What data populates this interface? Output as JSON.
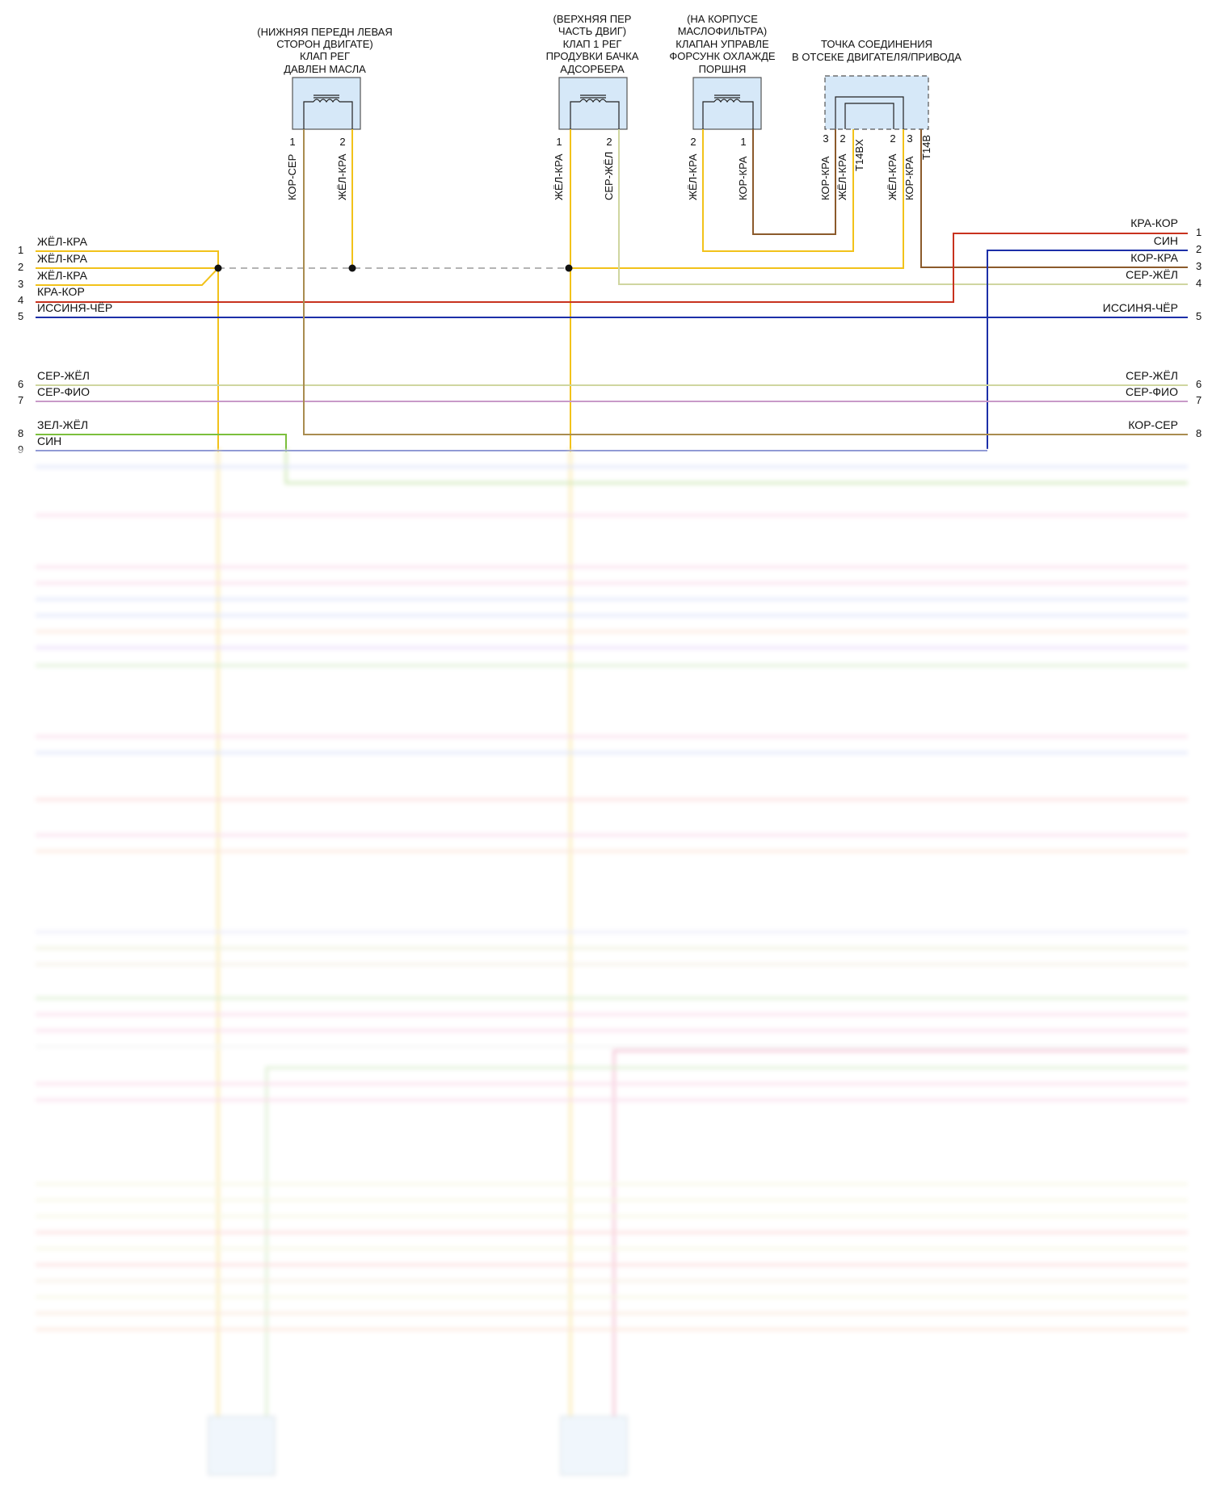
{
  "components": [
    {
      "id": "oil-pressure-valve",
      "caption": [
        "(НИЖНЯЯ ПЕРЕДН ЛЕВАЯ",
        "СТОРОН ДВИГАТЕ)",
        "КЛАП РЕГ",
        "ДАВЛЕН МАСЛА"
      ],
      "pins": [
        {
          "num": "1",
          "wire": "КОР-СЕР"
        },
        {
          "num": "2",
          "wire": "ЖЁЛ-КРА"
        }
      ]
    },
    {
      "id": "purge-valve",
      "caption": [
        "(ВЕРХНЯЯ ПЕР",
        "ЧАСТЬ ДВИГ)",
        "КЛАП 1 РЕГ",
        "ПРОДУВКИ БАЧКА",
        "АДСОРБЕРА"
      ],
      "pins": [
        {
          "num": "1",
          "wire": "ЖЁЛ-КРА"
        },
        {
          "num": "2",
          "wire": "СЕР-ЖЁЛ"
        }
      ]
    },
    {
      "id": "piston-cooling-valve",
      "caption": [
        "(НА КОРПУСЕ",
        "МАСЛОФИЛЬТРА)",
        "КЛАПАН УПРАВЛЕ",
        "ФОРСУНК ОХЛАЖДЕ",
        "ПОРШНЯ"
      ],
      "pins": [
        {
          "num": "2",
          "wire": "ЖЁЛ-КРА"
        },
        {
          "num": "1",
          "wire": "КОР-КРА"
        }
      ]
    },
    {
      "id": "junction-point",
      "caption": [
        "ТОЧКА СОЕДИНЕНИЯ",
        "В ОТСЕКЕ ДВИГАТЕЛЯ/ПРИВОДА"
      ],
      "pins": [
        {
          "num": "3",
          "wire": "КОР-КРА"
        },
        {
          "num": "2",
          "wire": "ЖЁЛ-КРА"
        },
        {
          "num": "",
          "wire": "T14BX"
        },
        {
          "num": "2",
          "wire": "ЖЁЛ-КРА"
        },
        {
          "num": "3",
          "wire": "КОР-КРА"
        },
        {
          "num": "",
          "wire": "T14B"
        }
      ]
    }
  ],
  "left_rows": [
    {
      "num": "1",
      "label": "ЖЁЛ-КРА"
    },
    {
      "num": "2",
      "label": "ЖЁЛ-КРА"
    },
    {
      "num": "3",
      "label": "ЖЁЛ-КРА"
    },
    {
      "num": "4",
      "label": "КРА-КОР"
    },
    {
      "num": "5",
      "label": "ИССИНЯ-ЧЁР"
    },
    {
      "num": "6",
      "label": "СЕР-ЖЁЛ"
    },
    {
      "num": "7",
      "label": "СЕР-ФИО"
    },
    {
      "num": "8",
      "label": "ЗЕЛ-ЖЁЛ"
    },
    {
      "num": "9",
      "label": "СИН"
    }
  ],
  "right_rows": [
    {
      "num": "1",
      "label": "КРА-КОР"
    },
    {
      "num": "2",
      "label": "СИН"
    },
    {
      "num": "3",
      "label": "КОР-КРА"
    },
    {
      "num": "4",
      "label": "СЕР-ЖЁЛ"
    },
    {
      "num": "5",
      "label": "ИССИНЯ-ЧЁР"
    },
    {
      "num": "6",
      "label": "СЕР-ЖЁЛ"
    },
    {
      "num": "7",
      "label": "СЕР-ФИО"
    },
    {
      "num": "8",
      "label": "КОР-СЕР"
    }
  ],
  "colors": {
    "yellow": "#f2c21a",
    "brown": "#8b5a2b",
    "red": "#c8321e",
    "blue": "#1c2fa8",
    "lightyellow": "#cfd6a0",
    "violet": "#c89ac8",
    "green": "#7cbf3c",
    "olive": "#a98c4f",
    "connector": "#d6e8f8",
    "pink": "#f0a0c8",
    "lightblue": "#a7b4f0",
    "orange": "#f5b89a"
  }
}
